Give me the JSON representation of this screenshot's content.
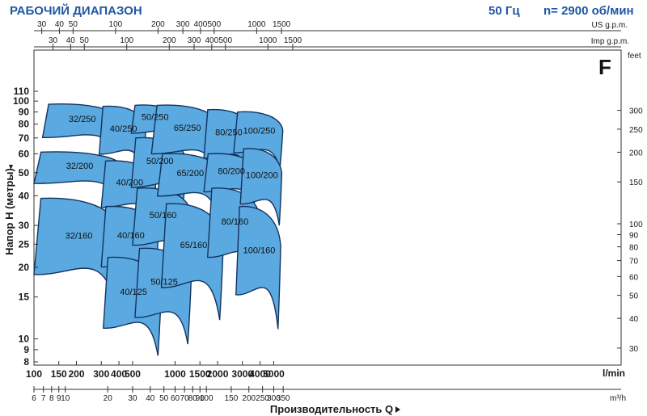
{
  "header": {
    "title": "РАБОЧИЙ ДИАПАЗОН",
    "freq": "50 Гц",
    "speed": "n= 2900 об/мин",
    "badge": "F"
  },
  "chart_data": {
    "type": "area",
    "title": "РАБОЧИЙ ДИАПАЗОН",
    "xlabel": "Производительность Q",
    "ylabel": "Напор H (метры)",
    "x_scale": "log",
    "y_scale": "log",
    "x_range_lmin": [
      100,
      6000
    ],
    "y_range_m": [
      8,
      110
    ],
    "grid": false,
    "axes": {
      "x_lmin": {
        "unit": "l/min",
        "ticks": [
          "100",
          "150",
          "200",
          "300",
          "400",
          "500",
          "1000",
          "1500",
          "2000",
          "3000",
          "4000",
          "5000"
        ]
      },
      "x_m3h": {
        "unit": "m³/h",
        "ticks": [
          "6",
          "7",
          "8",
          "9",
          "10",
          "20",
          "30",
          "40",
          "50",
          "60",
          "70",
          "80",
          "90",
          "100",
          "150",
          "200",
          "250",
          "300",
          "350"
        ]
      },
      "x_us_gpm": {
        "unit": "US g.p.m.",
        "ticks": [
          "30",
          "40",
          "50",
          "100",
          "200",
          "300",
          "400",
          "500",
          "1000",
          "1500"
        ]
      },
      "x_imp_gpm": {
        "unit": "Imp g.p.m.",
        "ticks": [
          "30",
          "40",
          "50",
          "100",
          "200",
          "300",
          "400",
          "500",
          "1000",
          "1500"
        ]
      },
      "y_m": {
        "unit": "Напор H (метры)",
        "ticks": [
          "8",
          "9",
          "10",
          "15",
          "20",
          "25",
          "30",
          "40",
          "50",
          "60",
          "70",
          "80",
          "90",
          "100",
          "110"
        ]
      },
      "y_feet": {
        "unit": "feet",
        "ticks": [
          "30",
          "40",
          "50",
          "60",
          "70",
          "80",
          "90",
          "100",
          "150",
          "200",
          "250",
          "300"
        ]
      }
    },
    "series": [
      {
        "name": "32/250",
        "q_lmin": [
          115,
          400
        ],
        "h_m": [
          62,
          97
        ]
      },
      {
        "name": "32/200",
        "q_lmin": [
          100,
          420
        ],
        "h_m": [
          40,
          61
        ]
      },
      {
        "name": "32/160",
        "q_lmin": [
          100,
          410
        ],
        "h_m": [
          14,
          39
        ]
      },
      {
        "name": "40/250",
        "q_lmin": [
          290,
          620
        ],
        "h_m": [
          50,
          95
        ]
      },
      {
        "name": "40/200",
        "q_lmin": [
          300,
          730
        ],
        "h_m": [
          30,
          56
        ]
      },
      {
        "name": "40/160",
        "q_lmin": [
          300,
          760
        ],
        "h_m": [
          16,
          36
        ]
      },
      {
        "name": "40/125",
        "q_lmin": [
          310,
          800
        ],
        "h_m": [
          8.5,
          22
        ]
      },
      {
        "name": "50/250",
        "q_lmin": [
          490,
          1030
        ],
        "h_m": [
          66,
          96
        ]
      },
      {
        "name": "50/200",
        "q_lmin": [
          490,
          1200
        ],
        "h_m": [
          36,
          70
        ]
      },
      {
        "name": "50/160",
        "q_lmin": [
          500,
          1300
        ],
        "h_m": [
          20,
          43
        ]
      },
      {
        "name": "50/125",
        "q_lmin": [
          520,
          1300
        ],
        "h_m": [
          9.5,
          24
        ]
      },
      {
        "name": "65/250",
        "q_lmin": [
          680,
          2100
        ],
        "h_m": [
          50,
          96
        ]
      },
      {
        "name": "65/200",
        "q_lmin": [
          750,
          2100
        ],
        "h_m": [
          34,
          60
        ]
      },
      {
        "name": "65/160",
        "q_lmin": [
          800,
          2200
        ],
        "h_m": [
          12,
          37
        ]
      },
      {
        "name": "80/250",
        "q_lmin": [
          1600,
          3500
        ],
        "h_m": [
          48,
          92
        ]
      },
      {
        "name": "80/200",
        "q_lmin": [
          1600,
          3800
        ],
        "h_m": [
          36,
          60
        ]
      },
      {
        "name": "80/160",
        "q_lmin": [
          1700,
          4000
        ],
        "h_m": [
          17,
          43
        ]
      },
      {
        "name": "100/250",
        "q_lmin": [
          2600,
          5800
        ],
        "h_m": [
          52,
          90
        ]
      },
      {
        "name": "100/200",
        "q_lmin": [
          2900,
          5700
        ],
        "h_m": [
          30,
          63
        ]
      },
      {
        "name": "100/160",
        "q_lmin": [
          2700,
          5600
        ],
        "h_m": [
          11,
          36
        ]
      }
    ]
  }
}
